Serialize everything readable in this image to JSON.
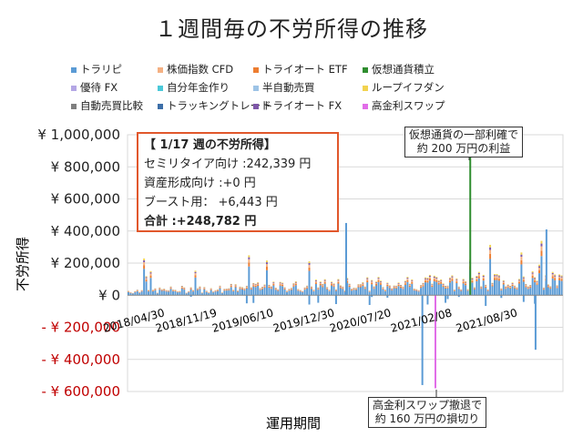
{
  "chart_data": {
    "type": "bar",
    "stacked": true,
    "title": "１週間毎の不労所得の推移",
    "xlabel": "運用期間",
    "ylabel": "不労所得",
    "ylim": [
      -600000,
      1000000
    ],
    "y_ticks": [
      1000000,
      800000,
      600000,
      400000,
      200000,
      0,
      -200000,
      -400000,
      -600000
    ],
    "y_tick_labels": [
      "¥ 1,000,000",
      "¥ 800,000",
      "¥ 600,000",
      "¥ 400,000",
      "¥ 200,000",
      "¥ 0",
      "- ¥ 200,000",
      "- ¥ 400,000",
      "- ¥ 600,000"
    ],
    "x_tick_labels": [
      "2018/04/30",
      "2018/11/19",
      "2019/06/10",
      "2019/12/30",
      "2020/07/20",
      "2021/02/08",
      "2021/08/30"
    ],
    "grid": true,
    "legend_position": "top",
    "series": [
      {
        "name": "トラリピ",
        "color": "#5b9bd5"
      },
      {
        "name": "株価指数 CFD",
        "color": "#f4b183"
      },
      {
        "name": "トライオート ETF",
        "color": "#ed7d31"
      },
      {
        "name": "仮想通貨積立",
        "color": "#2f8d2f"
      },
      {
        "name": "優待 FX",
        "color": "#b4a7e5"
      },
      {
        "name": "自分年金作り",
        "color": "#4bc9d9"
      },
      {
        "name": "半自動売買",
        "color": "#9dc3e6"
      },
      {
        "name": "ループイフダン",
        "color": "#f2d34f"
      },
      {
        "name": "自動売買比較",
        "color": "#7f7f7f"
      },
      {
        "name": "トラッキングトレード",
        "color": "#3d6fa8"
      },
      {
        "name": "トライオート FX",
        "color": "#7e57a8"
      },
      {
        "name": "高金利スワップ",
        "color": "#e16de8"
      }
    ],
    "notable_points": [
      {
        "series": "仮想通貨積立",
        "x": "2021/05",
        "value": 870000
      },
      {
        "series": "高金利スワップ",
        "x": "2021/02",
        "value": -580000
      },
      {
        "series": "トラリピ",
        "x": "2020/01",
        "value": 450000
      },
      {
        "series": "トラリピ",
        "x": "2021/11",
        "value": -340000
      }
    ],
    "annotations": [
      "仮想通貨の一部利確で\n約 200 万円の利益",
      "高金利スワップ撤退で\n約 160 万円の損切り"
    ]
  },
  "summary": {
    "heading": "【 1/17 週の不労所得】",
    "line1": "セミリタイア向け :242,339 円",
    "line2": "資産形成向け :+0 円",
    "line3": "ブースト用： +6,443 円",
    "total": "合計 :+248,782 円"
  },
  "annotations": {
    "top_line1": "仮想通貨の一部利確で",
    "top_line2": "約 200 万円の利益",
    "bottom_line1": "高金利スワップ撤退で",
    "bottom_line2": "約 160 万円の損切り"
  }
}
